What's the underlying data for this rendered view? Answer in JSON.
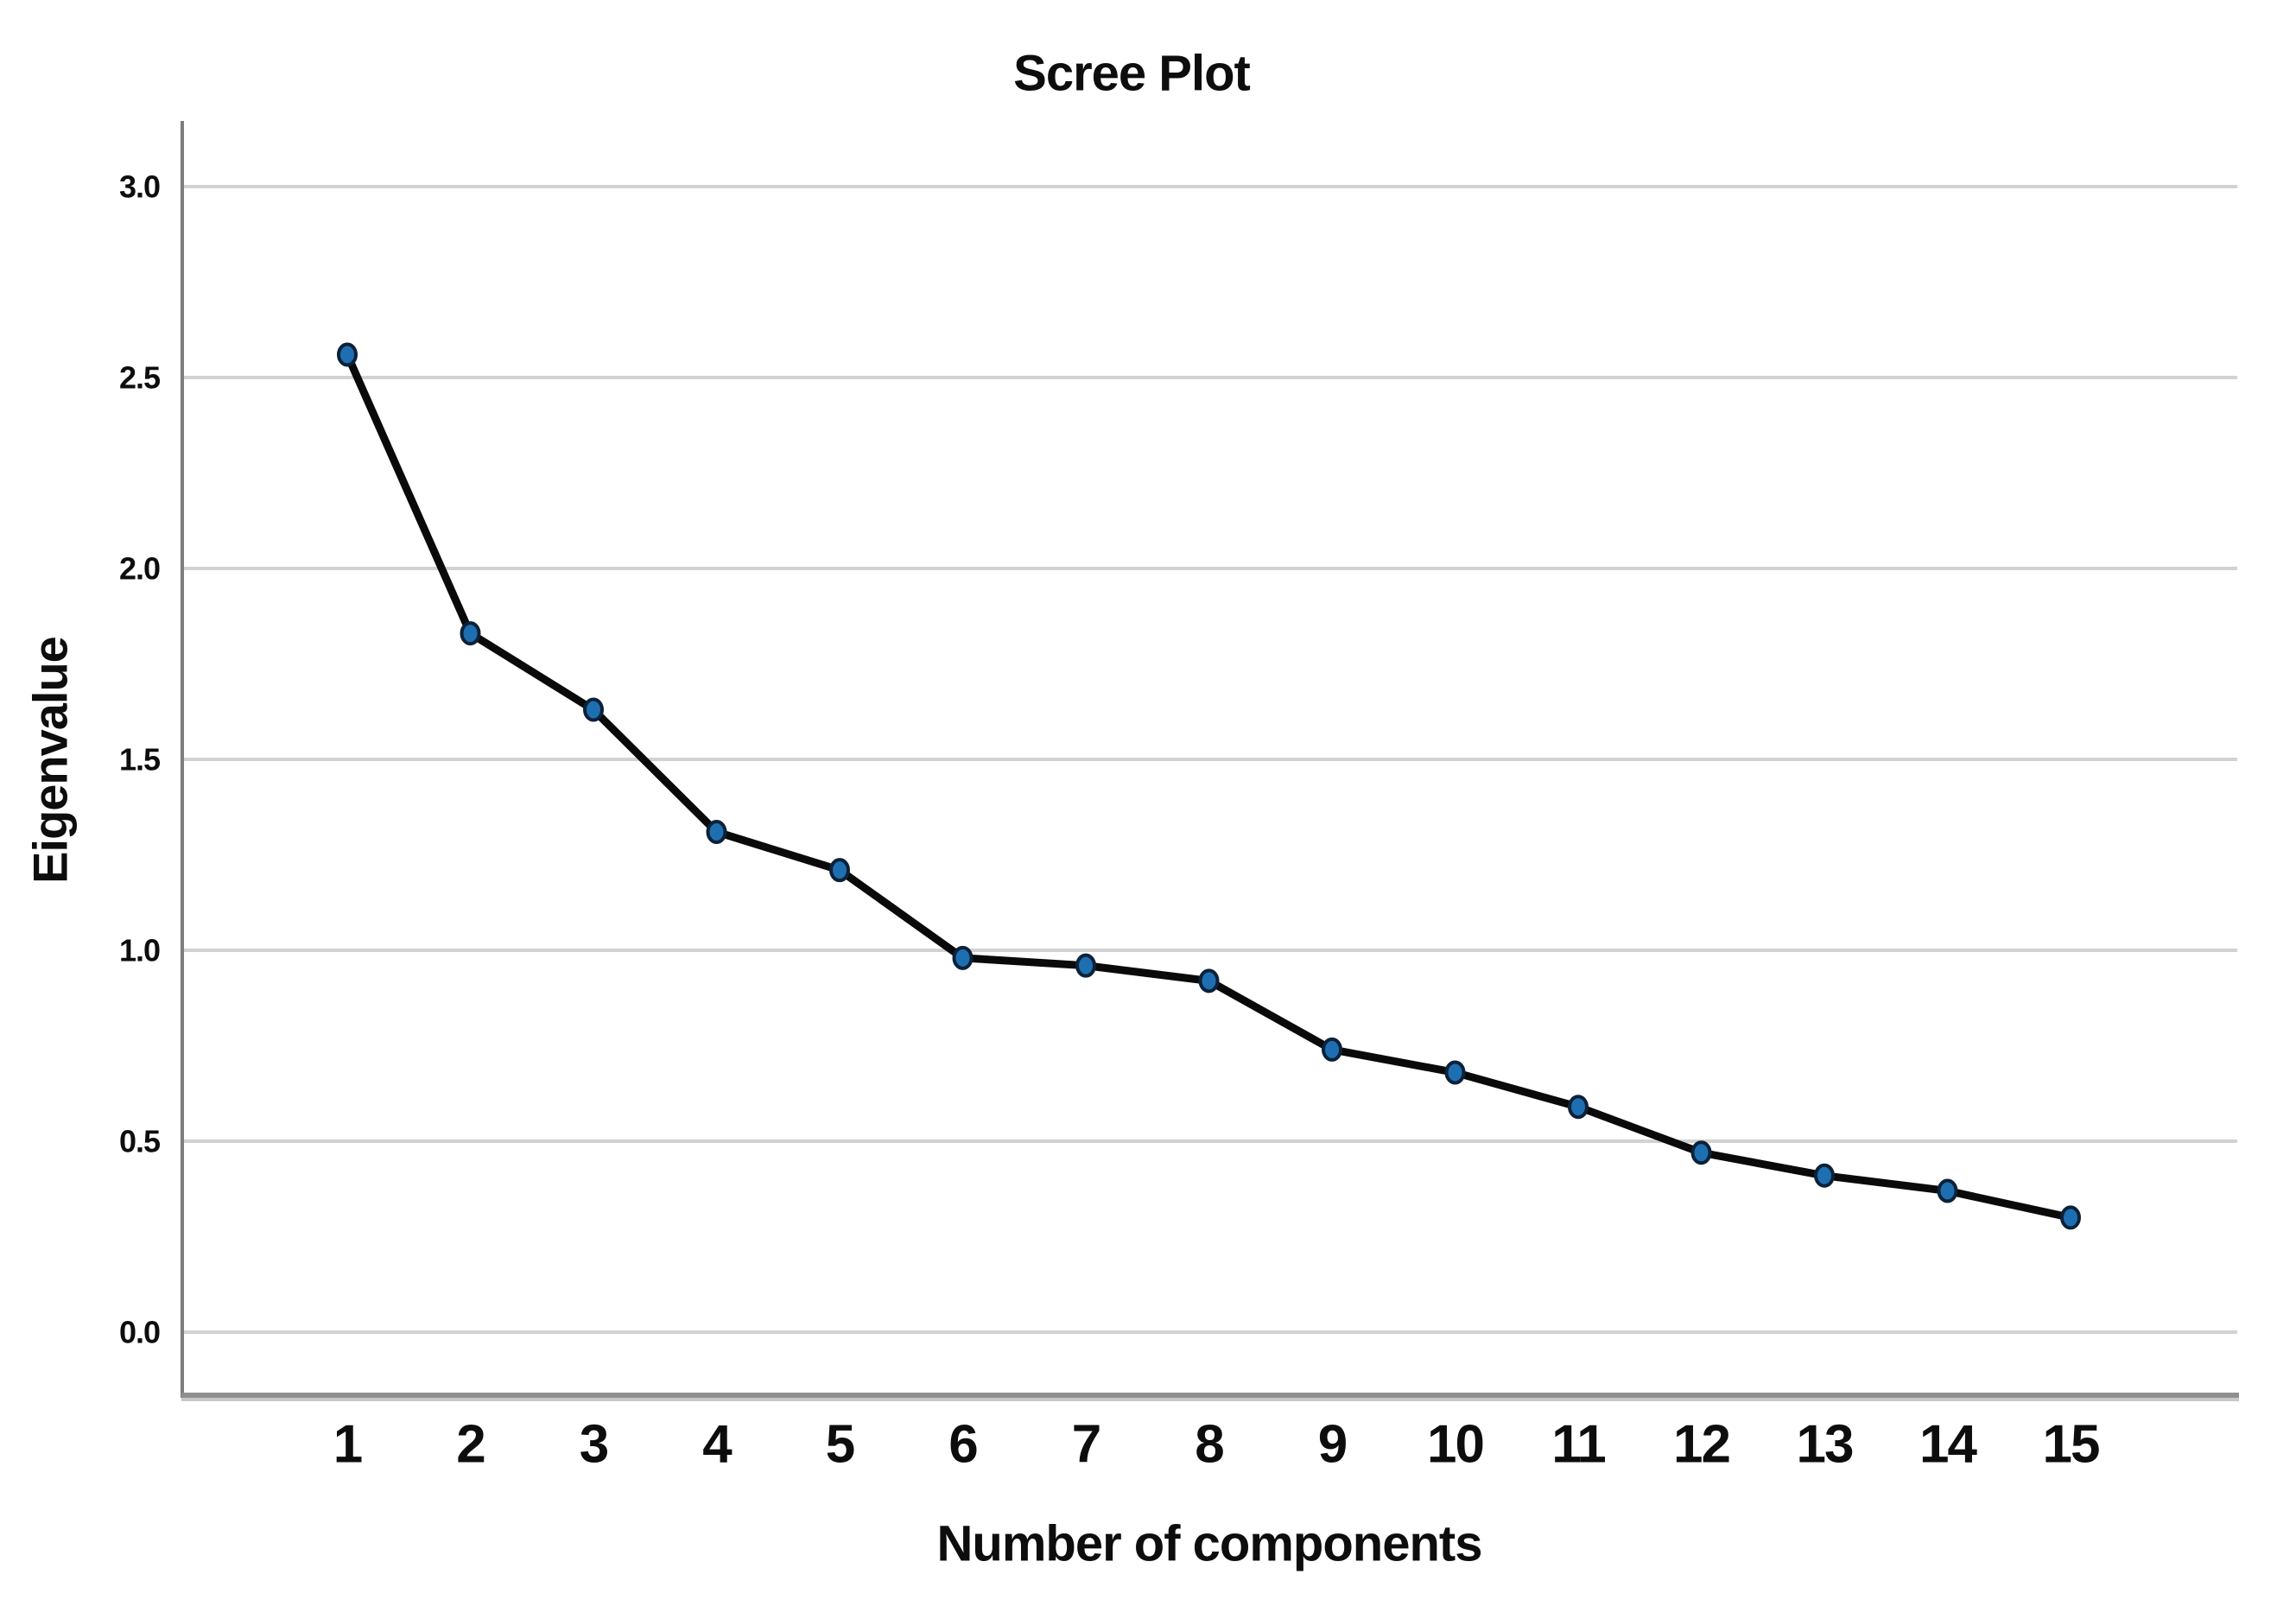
{
  "chart_data": {
    "type": "line",
    "title": "Scree Plot",
    "xlabel": "Number of components",
    "ylabel": "Eigenvalue",
    "categories": [
      "1",
      "2",
      "3",
      "4",
      "5",
      "6",
      "7",
      "8",
      "9",
      "10",
      "11",
      "12",
      "13",
      "14",
      "15"
    ],
    "values": [
      2.56,
      1.83,
      1.63,
      1.31,
      1.21,
      0.98,
      0.96,
      0.92,
      0.74,
      0.68,
      0.59,
      0.47,
      0.41,
      0.37,
      0.3
    ],
    "y_ticks": [
      {
        "value": 3.0,
        "label": "3.0"
      },
      {
        "value": 2.5,
        "label": "2.5"
      },
      {
        "value": 2.0,
        "label": "2.0"
      },
      {
        "value": 1.5,
        "label": "1.5"
      },
      {
        "value": 1.0,
        "label": "1.0"
      },
      {
        "value": 0.5,
        "label": "0.5"
      },
      {
        "value": 0.0,
        "label": "0.0"
      }
    ],
    "ylim": [
      -0.17,
      3.17
    ],
    "xlim": [
      1,
      15
    ],
    "grid": "horizontal-only",
    "legend": "none",
    "marker_shape": "filled-circle",
    "style": {
      "line_color": "#0a0a0a",
      "marker_fill": "#1e6fb2",
      "marker_stroke": "#0d2138",
      "grid_color": "#d2d2d2",
      "y_axis_color": "#7d7d7d",
      "x_axis_color": "#8f8f8f",
      "x_axis_shadow": "#c8c8c8",
      "text_color": "#0d0d0d",
      "background": "#ffffff"
    }
  }
}
